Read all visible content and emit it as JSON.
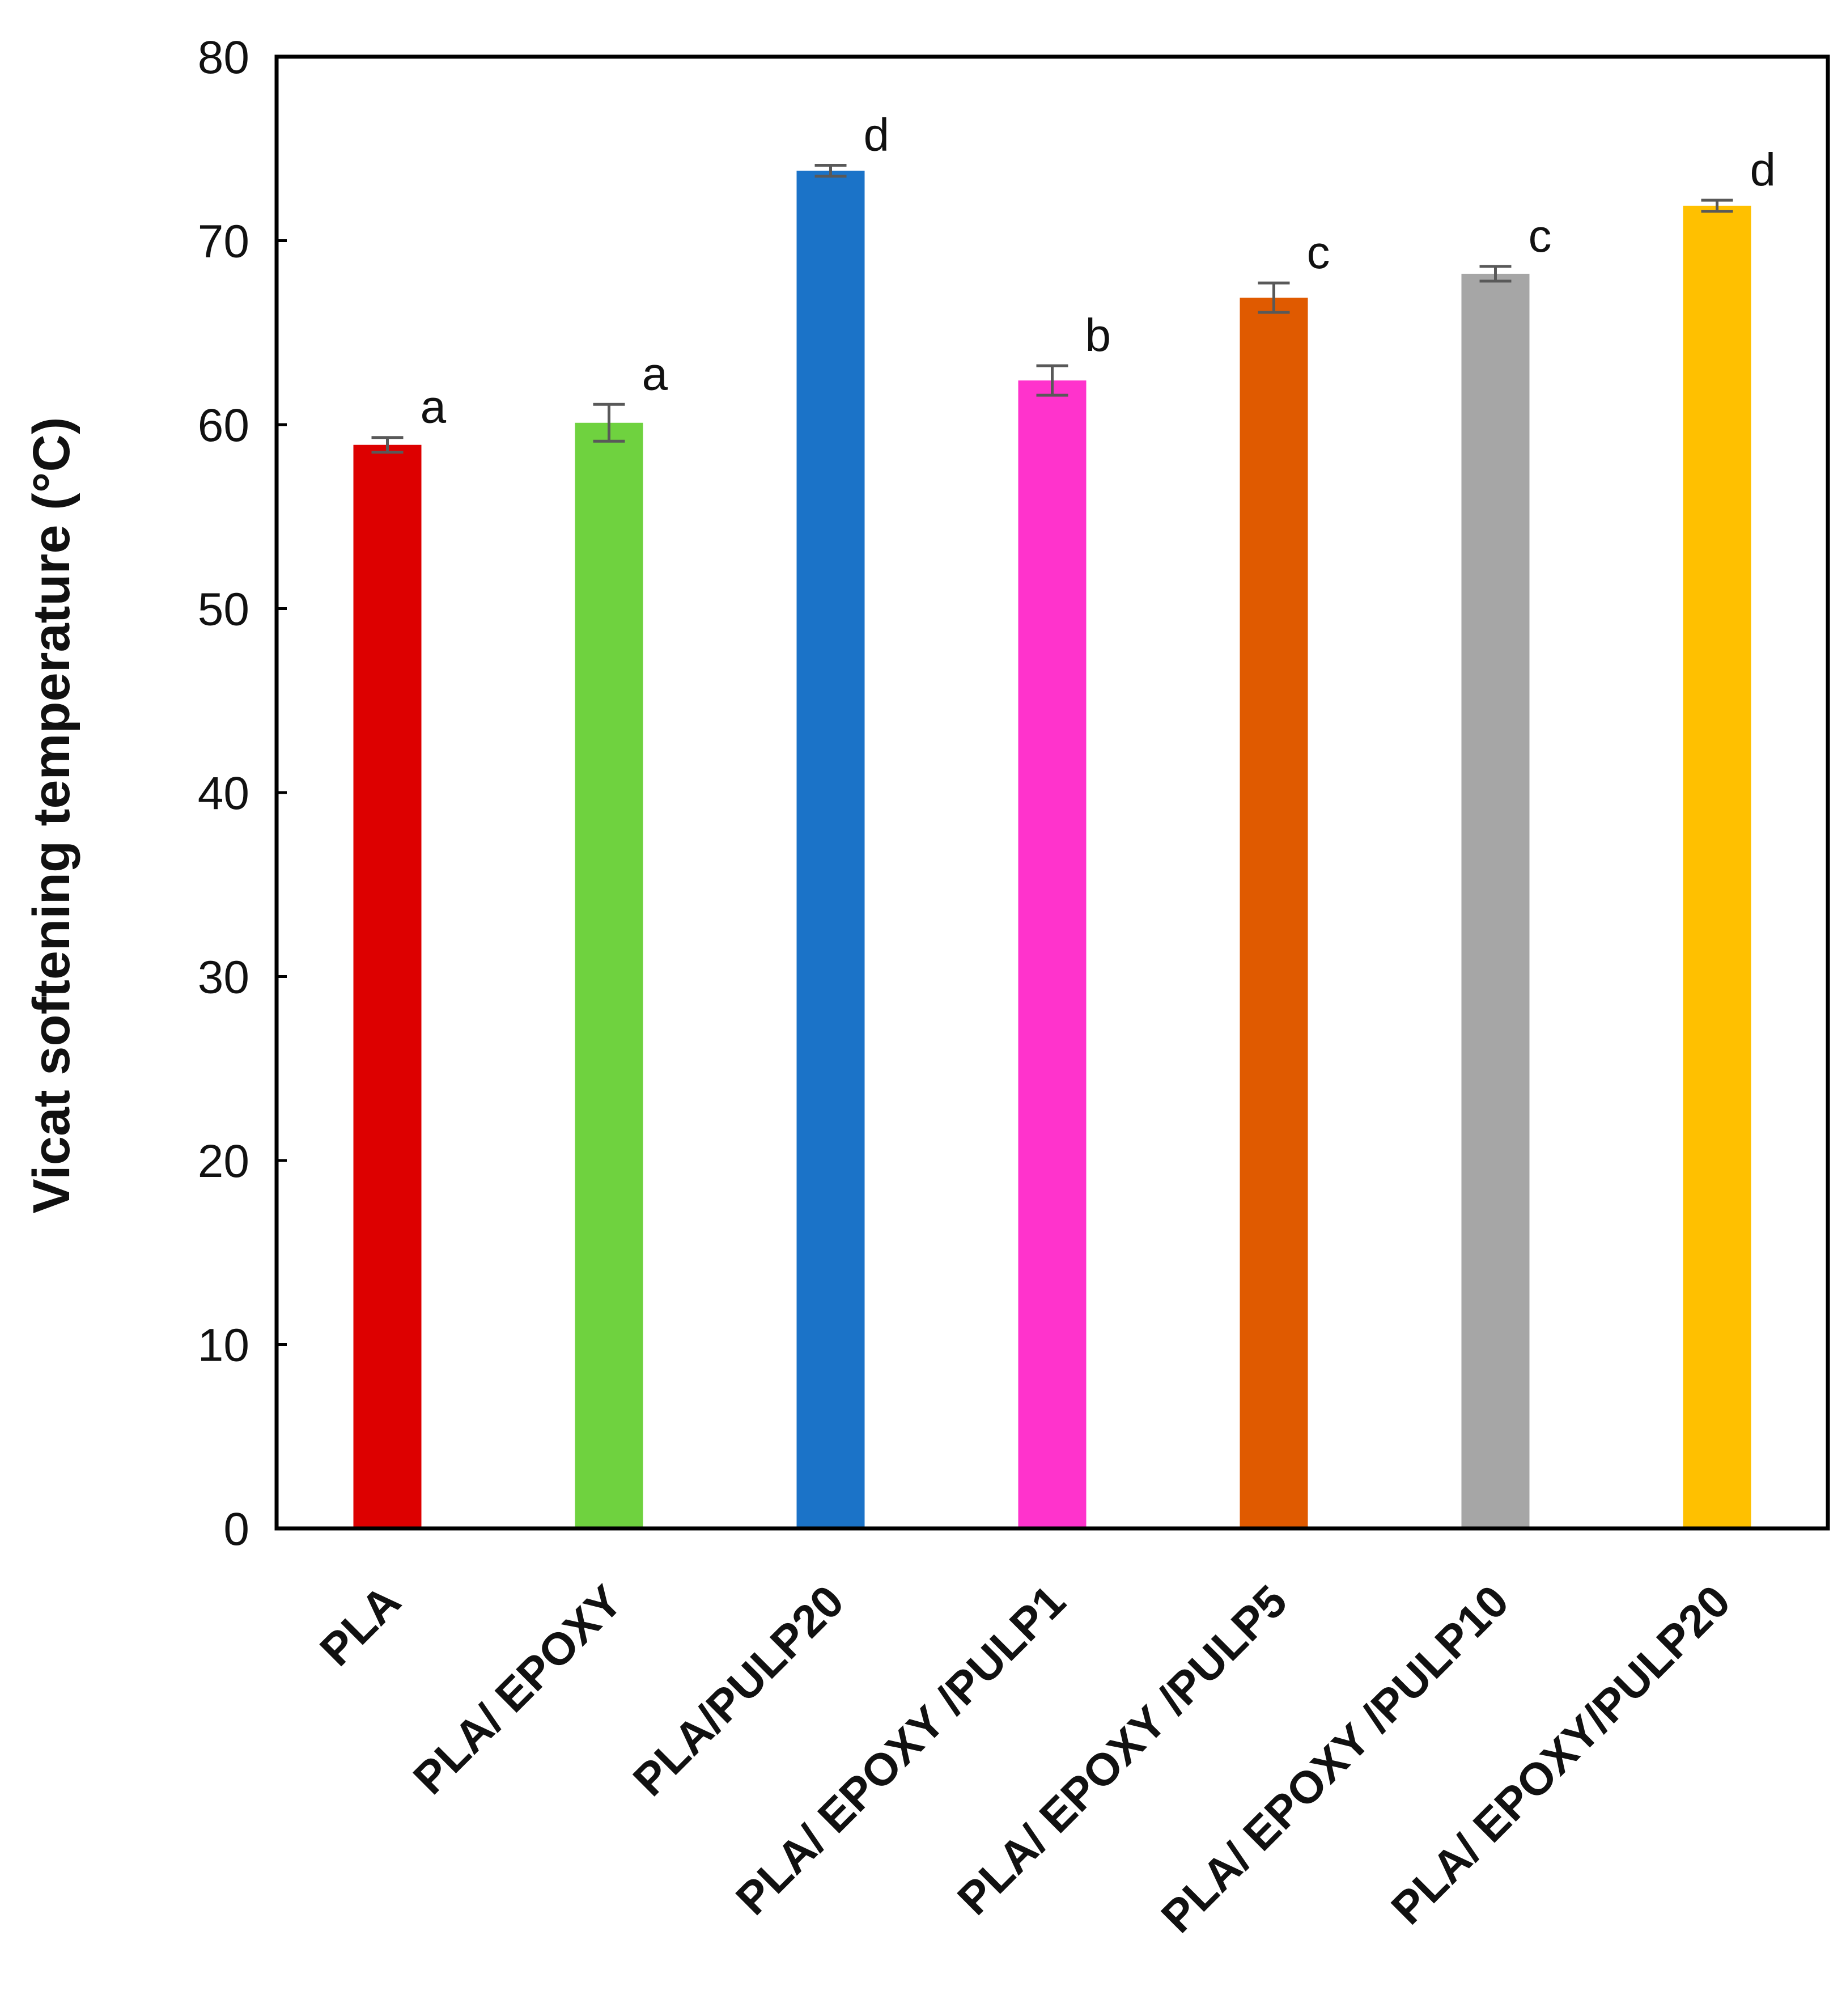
{
  "chart_data": {
    "type": "bar",
    "title": "",
    "xlabel": "",
    "ylabel": "Vicat softening temperature (°C)",
    "ylim": [
      0,
      80
    ],
    "yticks": [
      0,
      10,
      20,
      30,
      40,
      50,
      60,
      70,
      80
    ],
    "yticks_labels": [
      "0",
      "10",
      "20",
      "30",
      "40",
      "50",
      "60",
      "70",
      "80"
    ],
    "grid": false,
    "legend": "none",
    "categories": [
      "PLA",
      "PLA/ EPOXY",
      "PLA/PULP20",
      "PLA/ EPOXY /PULP1",
      "PLA/ EPOXY /PULP5",
      "PLA/ EPOXY /PULP10",
      "PLA/ EPOXY/PULP20"
    ],
    "values": [
      58.9,
      60.1,
      73.8,
      62.4,
      66.9,
      68.2,
      71.9
    ],
    "errors": [
      0.4,
      1.0,
      0.3,
      0.8,
      0.8,
      0.4,
      0.3
    ],
    "significance_letters": [
      "a",
      "a",
      "d",
      "b",
      "c",
      "c",
      "d"
    ],
    "colors": [
      "#DD0000",
      "#6FD23F",
      "#1B73C8",
      "#FF33CC",
      "#E05A00",
      "#A6A6A6",
      "#FFC000"
    ],
    "error_bar_color": "#595959"
  }
}
